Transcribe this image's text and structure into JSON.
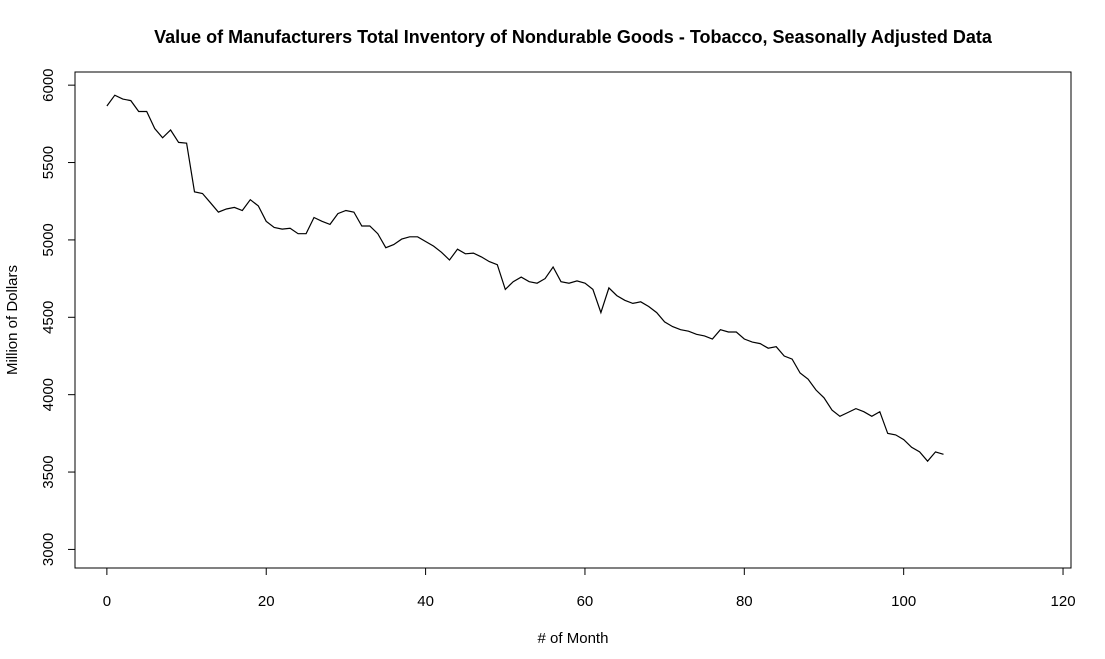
{
  "chart_data": {
    "type": "line",
    "title": "Value of Manufacturers Total Inventory of Nondurable Goods - Tobacco, Seasonally Adjusted Data",
    "xlabel": "# of Month",
    "ylabel": "Million of Dollars",
    "xlim": [
      -4,
      121
    ],
    "ylim": [
      2880,
      6085
    ],
    "xticks": [
      0,
      20,
      40,
      60,
      80,
      100,
      120
    ],
    "yticks": [
      3000,
      3500,
      4000,
      4500,
      5000,
      5500,
      6000
    ],
    "grid": false,
    "line_color": "#000000",
    "series": [
      {
        "x": [
          0,
          1,
          2,
          3,
          4,
          5,
          6,
          7,
          8,
          9,
          10,
          11,
          12,
          13,
          14,
          15,
          16,
          17,
          18,
          19,
          20,
          21,
          22,
          23,
          24,
          25,
          26,
          27,
          28,
          29,
          30,
          31,
          32,
          33,
          34,
          35,
          36,
          37,
          38,
          39,
          40,
          41,
          42,
          43,
          44,
          45,
          46,
          47,
          48,
          49,
          50,
          51,
          52,
          53,
          54,
          55,
          56,
          57,
          58,
          59,
          60,
          61,
          62,
          63,
          64,
          65,
          66,
          67,
          68,
          69,
          70,
          71,
          72,
          73,
          74,
          75,
          76,
          77,
          78,
          79,
          80,
          81,
          82,
          83,
          84,
          85,
          86,
          87,
          88,
          89,
          90,
          91,
          92,
          93,
          94,
          95,
          96,
          97,
          98,
          99,
          100,
          101,
          102,
          103,
          104,
          105
        ],
        "values": [
          5865,
          5935,
          5910,
          5900,
          5830,
          5830,
          5720,
          5660,
          5710,
          5630,
          5625,
          5310,
          5300,
          5240,
          5180,
          5200,
          5210,
          5190,
          5260,
          5220,
          5120,
          5080,
          5070,
          5075,
          5040,
          5040,
          5145,
          5120,
          5100,
          5170,
          5190,
          5180,
          5090,
          5090,
          5040,
          4950,
          4970,
          5005,
          5020,
          5020,
          4990,
          4960,
          4920,
          4870,
          4940,
          4910,
          4915,
          4890,
          4860,
          4840,
          4680,
          4730,
          4760,
          4730,
          4720,
          4750,
          4825,
          4730,
          4720,
          4735,
          4720,
          4680,
          4530,
          4690,
          4640,
          4610,
          4590,
          4600,
          4570,
          4530,
          4470,
          4440,
          4420,
          4410,
          4390,
          4380,
          4360,
          4420,
          4405,
          4405,
          4360,
          4340,
          4330,
          4300,
          4310,
          4250,
          4230,
          4140,
          4100,
          4030,
          3980,
          3900,
          3860,
          3885,
          3910,
          3890,
          3860,
          3890,
          3750,
          3740,
          3710,
          3660,
          3630,
          3570,
          3630,
          3615
        ]
      }
    ]
  }
}
